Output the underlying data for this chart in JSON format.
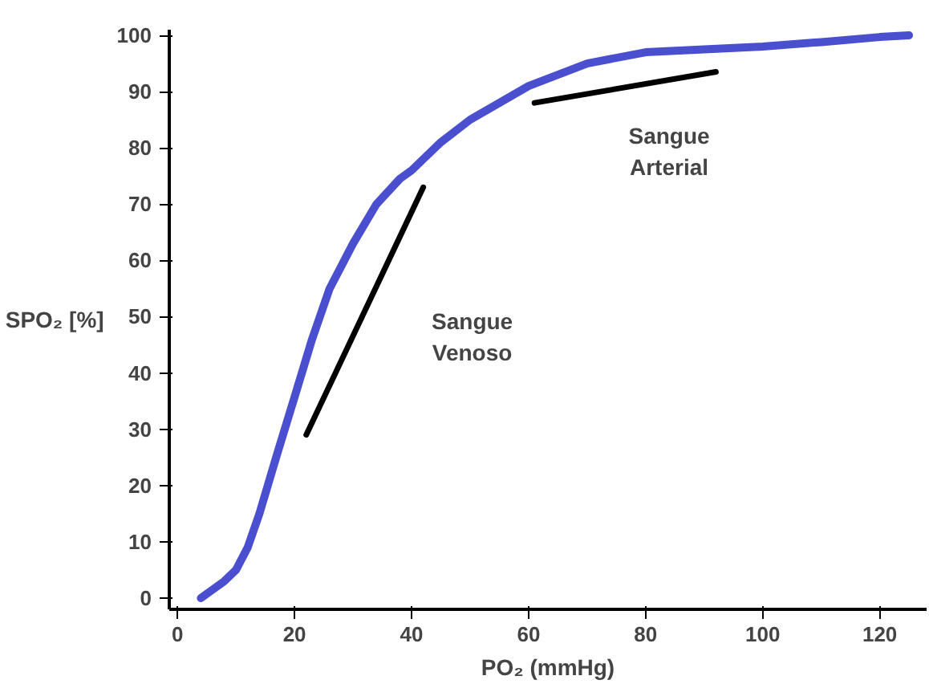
{
  "chart_data": {
    "type": "line",
    "xlabel": "PO₂ (mmHg)",
    "ylabel": "SPO₂ [%]",
    "xlim": [
      -1.4,
      128
    ],
    "ylim": [
      -2,
      101
    ],
    "xticks": [
      0,
      20,
      40,
      60,
      80,
      100,
      120
    ],
    "yticks": [
      0,
      10,
      20,
      30,
      40,
      50,
      60,
      70,
      80,
      90,
      100
    ],
    "grid": false,
    "marker": "none",
    "line_style": "solid",
    "series": [
      {
        "color": "#4a4fd0",
        "x": [
          4,
          6,
          8,
          10,
          12,
          14,
          17,
          20,
          23,
          26,
          30,
          34,
          38,
          40,
          45,
          50,
          55,
          60,
          65,
          70,
          80,
          90,
          100,
          110,
          120,
          125
        ],
        "values": [
          0,
          1.5,
          3,
          5,
          9,
          15,
          25.5,
          35.7,
          46,
          55,
          63,
          70,
          74.5,
          76,
          81,
          85,
          88,
          91,
          93,
          95,
          97,
          97.5,
          98,
          98.8,
          99.7,
          100
        ]
      },
      {
        "color": "#000000",
        "x": [
          22,
          42
        ],
        "values": [
          29,
          73
        ]
      },
      {
        "color": "#000000",
        "x": [
          61,
          92
        ],
        "values": [
          88,
          93.5
        ]
      }
    ],
    "annotations": [
      "Sangue\nVenoso",
      "Sangue\nArterial"
    ]
  }
}
